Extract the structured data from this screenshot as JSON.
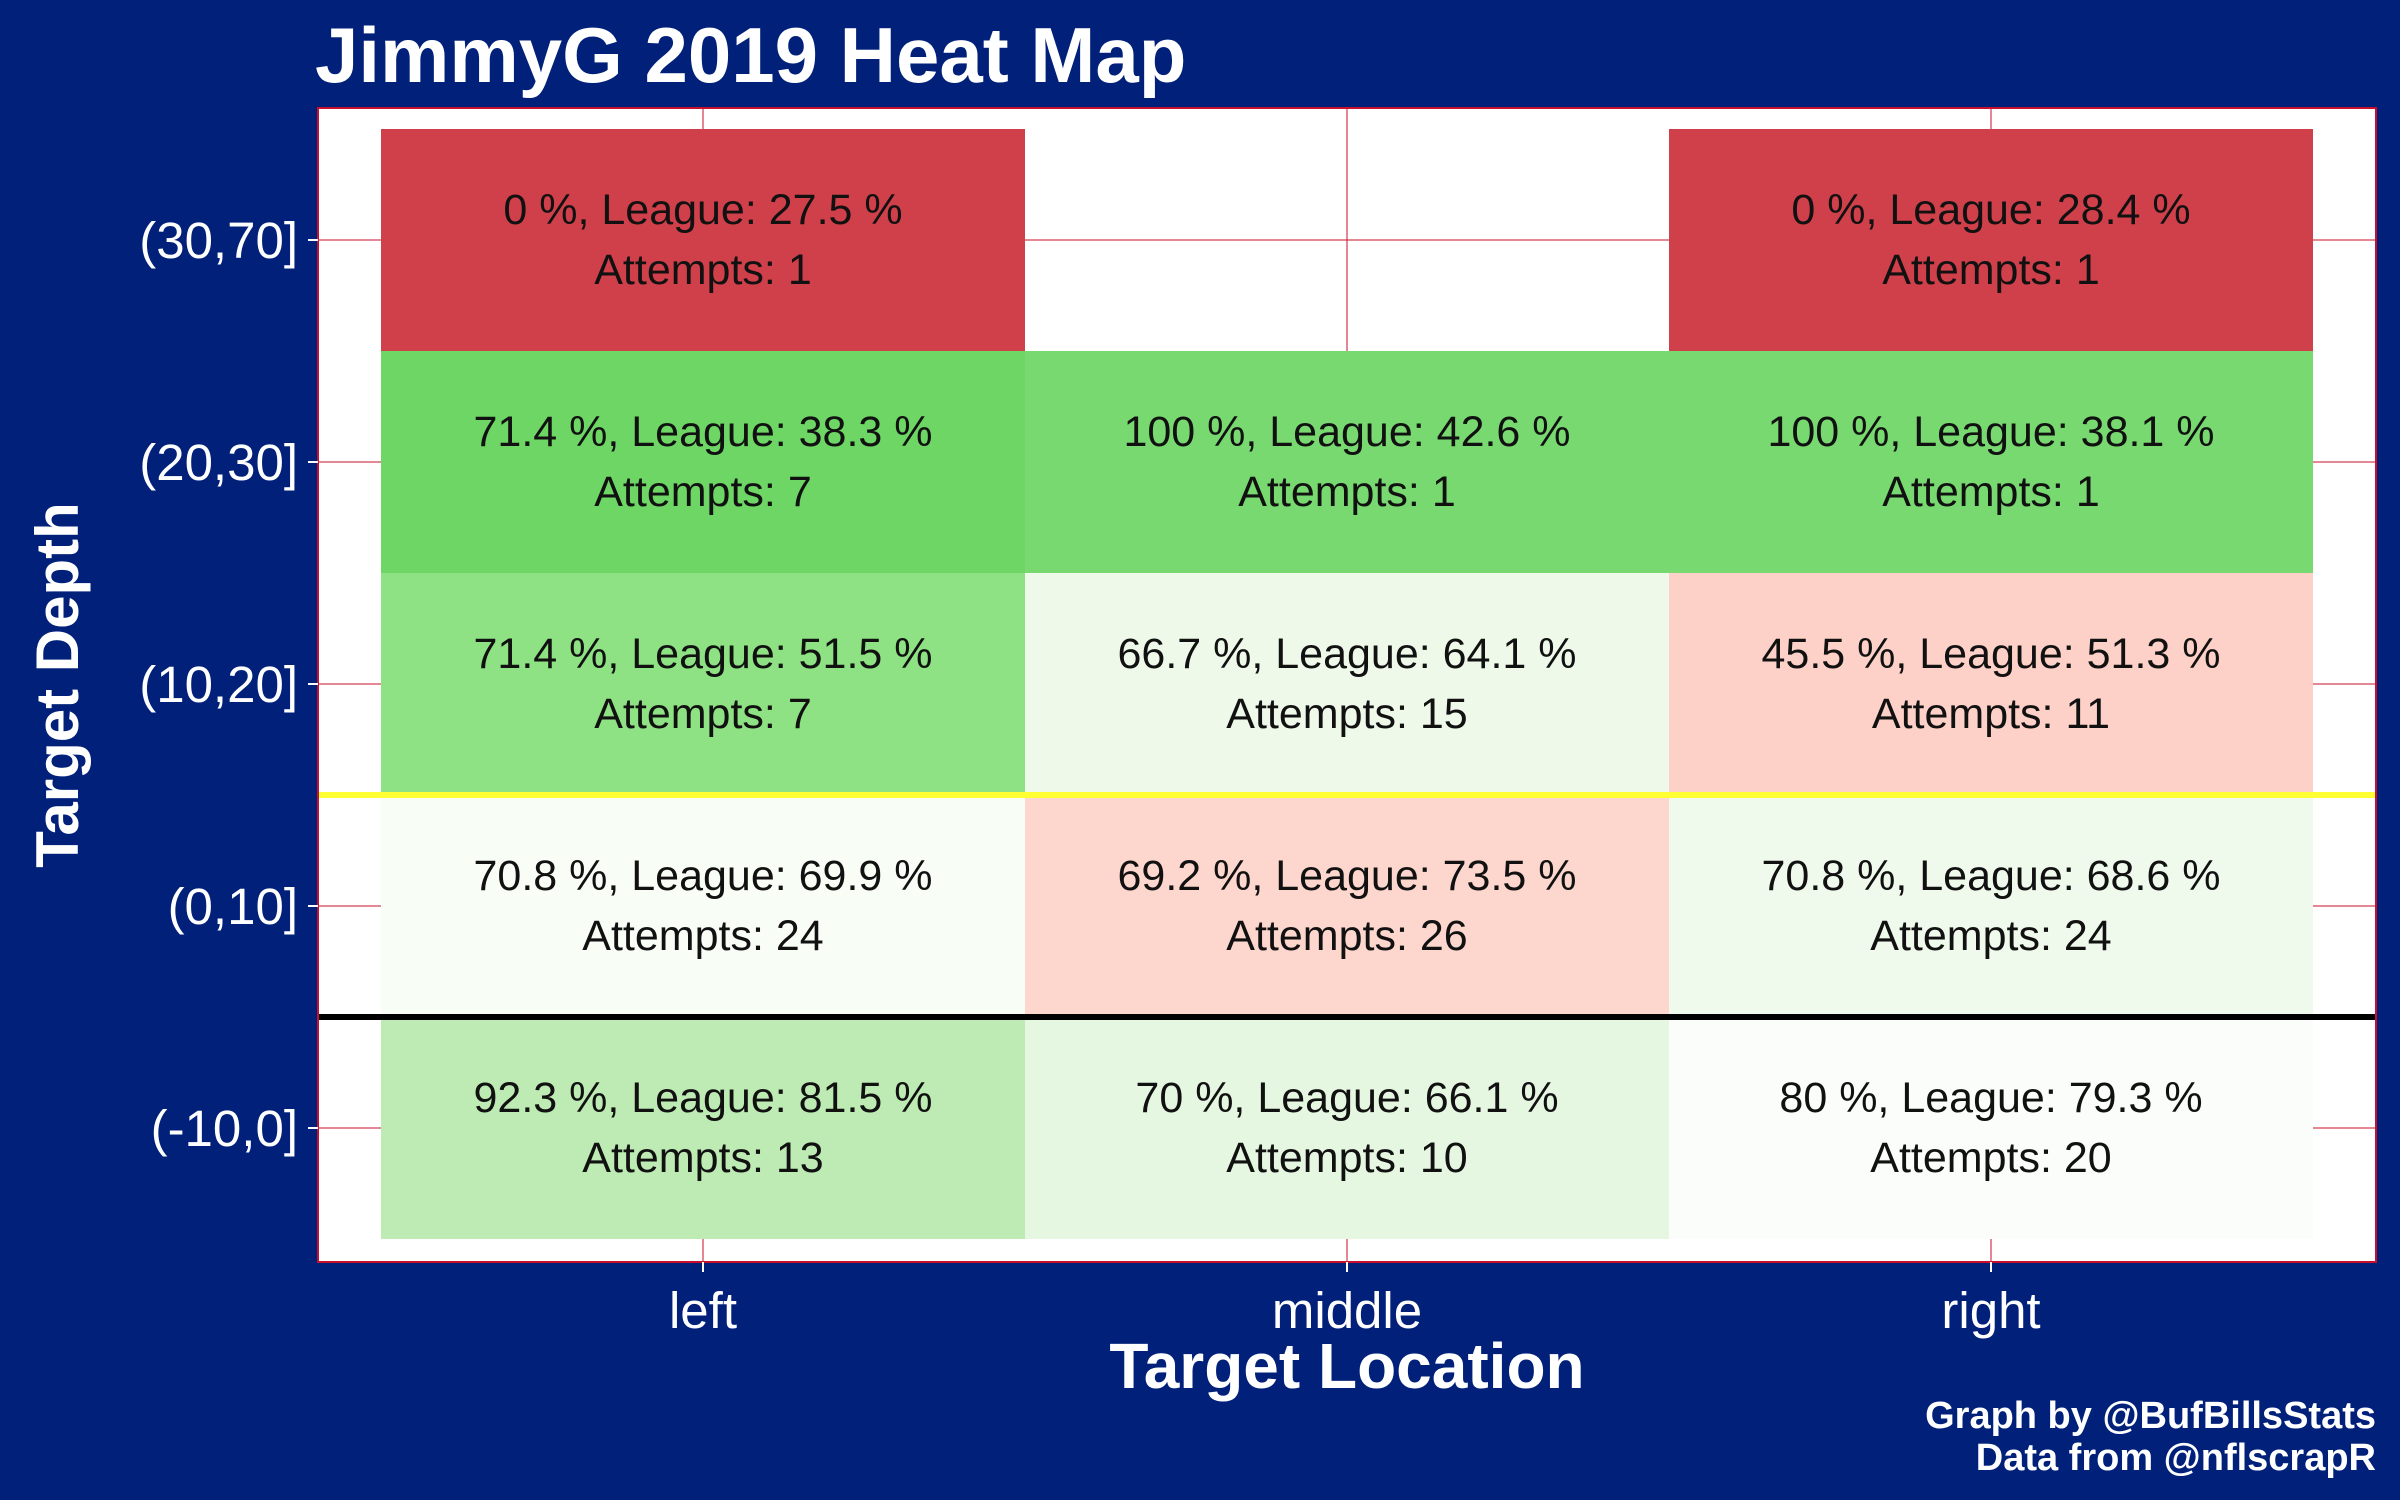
{
  "chart_data": {
    "type": "heatmap",
    "title": "JimmyG 2019 Heat Map",
    "xlabel": "Target Location",
    "ylabel": "Target Depth",
    "x_categories": [
      "left",
      "middle",
      "right"
    ],
    "y_categories": [
      "(30,70]",
      "(20,30]",
      "(10,20]",
      "(0,10]",
      "(-10,0]"
    ],
    "cells": [
      {
        "x": "left",
        "y": "(30,70]",
        "label": "0 %, League: 27.5 %",
        "attempts_label": "Attempts: 1",
        "completion_pct": 0,
        "league_pct": 27.5,
        "attempts": 1,
        "color": "#d0404a"
      },
      {
        "x": "right",
        "y": "(30,70]",
        "label": "0 %, League: 28.4 %",
        "attempts_label": "Attempts: 1",
        "completion_pct": 0,
        "league_pct": 28.4,
        "attempts": 1,
        "color": "#d0404a"
      },
      {
        "x": "left",
        "y": "(20,30]",
        "label": "71.4 %, League: 38.3 %",
        "attempts_label": "Attempts: 7",
        "completion_pct": 71.4,
        "league_pct": 38.3,
        "attempts": 7,
        "color": "#6dd664"
      },
      {
        "x": "middle",
        "y": "(20,30]",
        "label": "100 %, League: 42.6 %",
        "attempts_label": "Attempts: 1",
        "completion_pct": 100,
        "league_pct": 42.6,
        "attempts": 1,
        "color": "#78d970"
      },
      {
        "x": "right",
        "y": "(20,30]",
        "label": "100 %, League: 38.1 %",
        "attempts_label": "Attempts: 1",
        "completion_pct": 100,
        "league_pct": 38.1,
        "attempts": 1,
        "color": "#78d970"
      },
      {
        "x": "left",
        "y": "(10,20]",
        "label": "71.4 %, League: 51.5 %",
        "attempts_label": "Attempts: 7",
        "completion_pct": 71.4,
        "league_pct": 51.5,
        "attempts": 7,
        "color": "#8ee283"
      },
      {
        "x": "middle",
        "y": "(10,20]",
        "label": "66.7 %, League: 64.1 %",
        "attempts_label": "Attempts: 15",
        "completion_pct": 66.7,
        "league_pct": 64.1,
        "attempts": 15,
        "color": "#eef9ea"
      },
      {
        "x": "right",
        "y": "(10,20]",
        "label": "45.5 %, League: 51.3 %",
        "attempts_label": "Attempts: 11",
        "completion_pct": 45.5,
        "league_pct": 51.3,
        "attempts": 11,
        "color": "#fdd1c8"
      },
      {
        "x": "left",
        "y": "(0,10]",
        "label": "70.8 %, League: 69.9 %",
        "attempts_label": "Attempts: 24",
        "completion_pct": 70.8,
        "league_pct": 69.9,
        "attempts": 24,
        "color": "#f8fdf6"
      },
      {
        "x": "middle",
        "y": "(0,10]",
        "label": "69.2 %, League: 73.5 %",
        "attempts_label": "Attempts: 26",
        "completion_pct": 69.2,
        "league_pct": 73.5,
        "attempts": 26,
        "color": "#fdd6cd"
      },
      {
        "x": "right",
        "y": "(0,10]",
        "label": "70.8 %, League: 68.6 %",
        "attempts_label": "Attempts: 24",
        "completion_pct": 70.8,
        "league_pct": 68.6,
        "attempts": 24,
        "color": "#f0faec"
      },
      {
        "x": "left",
        "y": "(-10,0]",
        "label": "92.3 %, League: 81.5 %",
        "attempts_label": "Attempts: 13",
        "completion_pct": 92.3,
        "league_pct": 81.5,
        "attempts": 13,
        "color": "#bdebb3"
      },
      {
        "x": "middle",
        "y": "(-10,0]",
        "label": "70 %, League: 66.1 %",
        "attempts_label": "Attempts: 10",
        "completion_pct": 70,
        "league_pct": 66.1,
        "attempts": 10,
        "color": "#e6f7e1"
      },
      {
        "x": "right",
        "y": "(-10,0]",
        "label": "80 %, League: 79.3 %",
        "attempts_label": "Attempts: 20",
        "completion_pct": 80,
        "league_pct": 79.3,
        "attempts": 20,
        "color": "#fafdf9"
      }
    ],
    "reference_lines": [
      {
        "between": [
          "(10,20]",
          "(0,10]"
        ],
        "color": "#ffff33"
      },
      {
        "between": [
          "(0,10]",
          "(-10,0]"
        ],
        "color": "#000000"
      }
    ],
    "grid": true,
    "colors": {
      "background": "#00207a",
      "panel": "#ffffff",
      "panel_border": "#c8102e",
      "grid": "#c8102e"
    }
  },
  "credits": {
    "line1": "Graph by @BufBillsStats",
    "line2": "Data from @nflscrapR"
  }
}
